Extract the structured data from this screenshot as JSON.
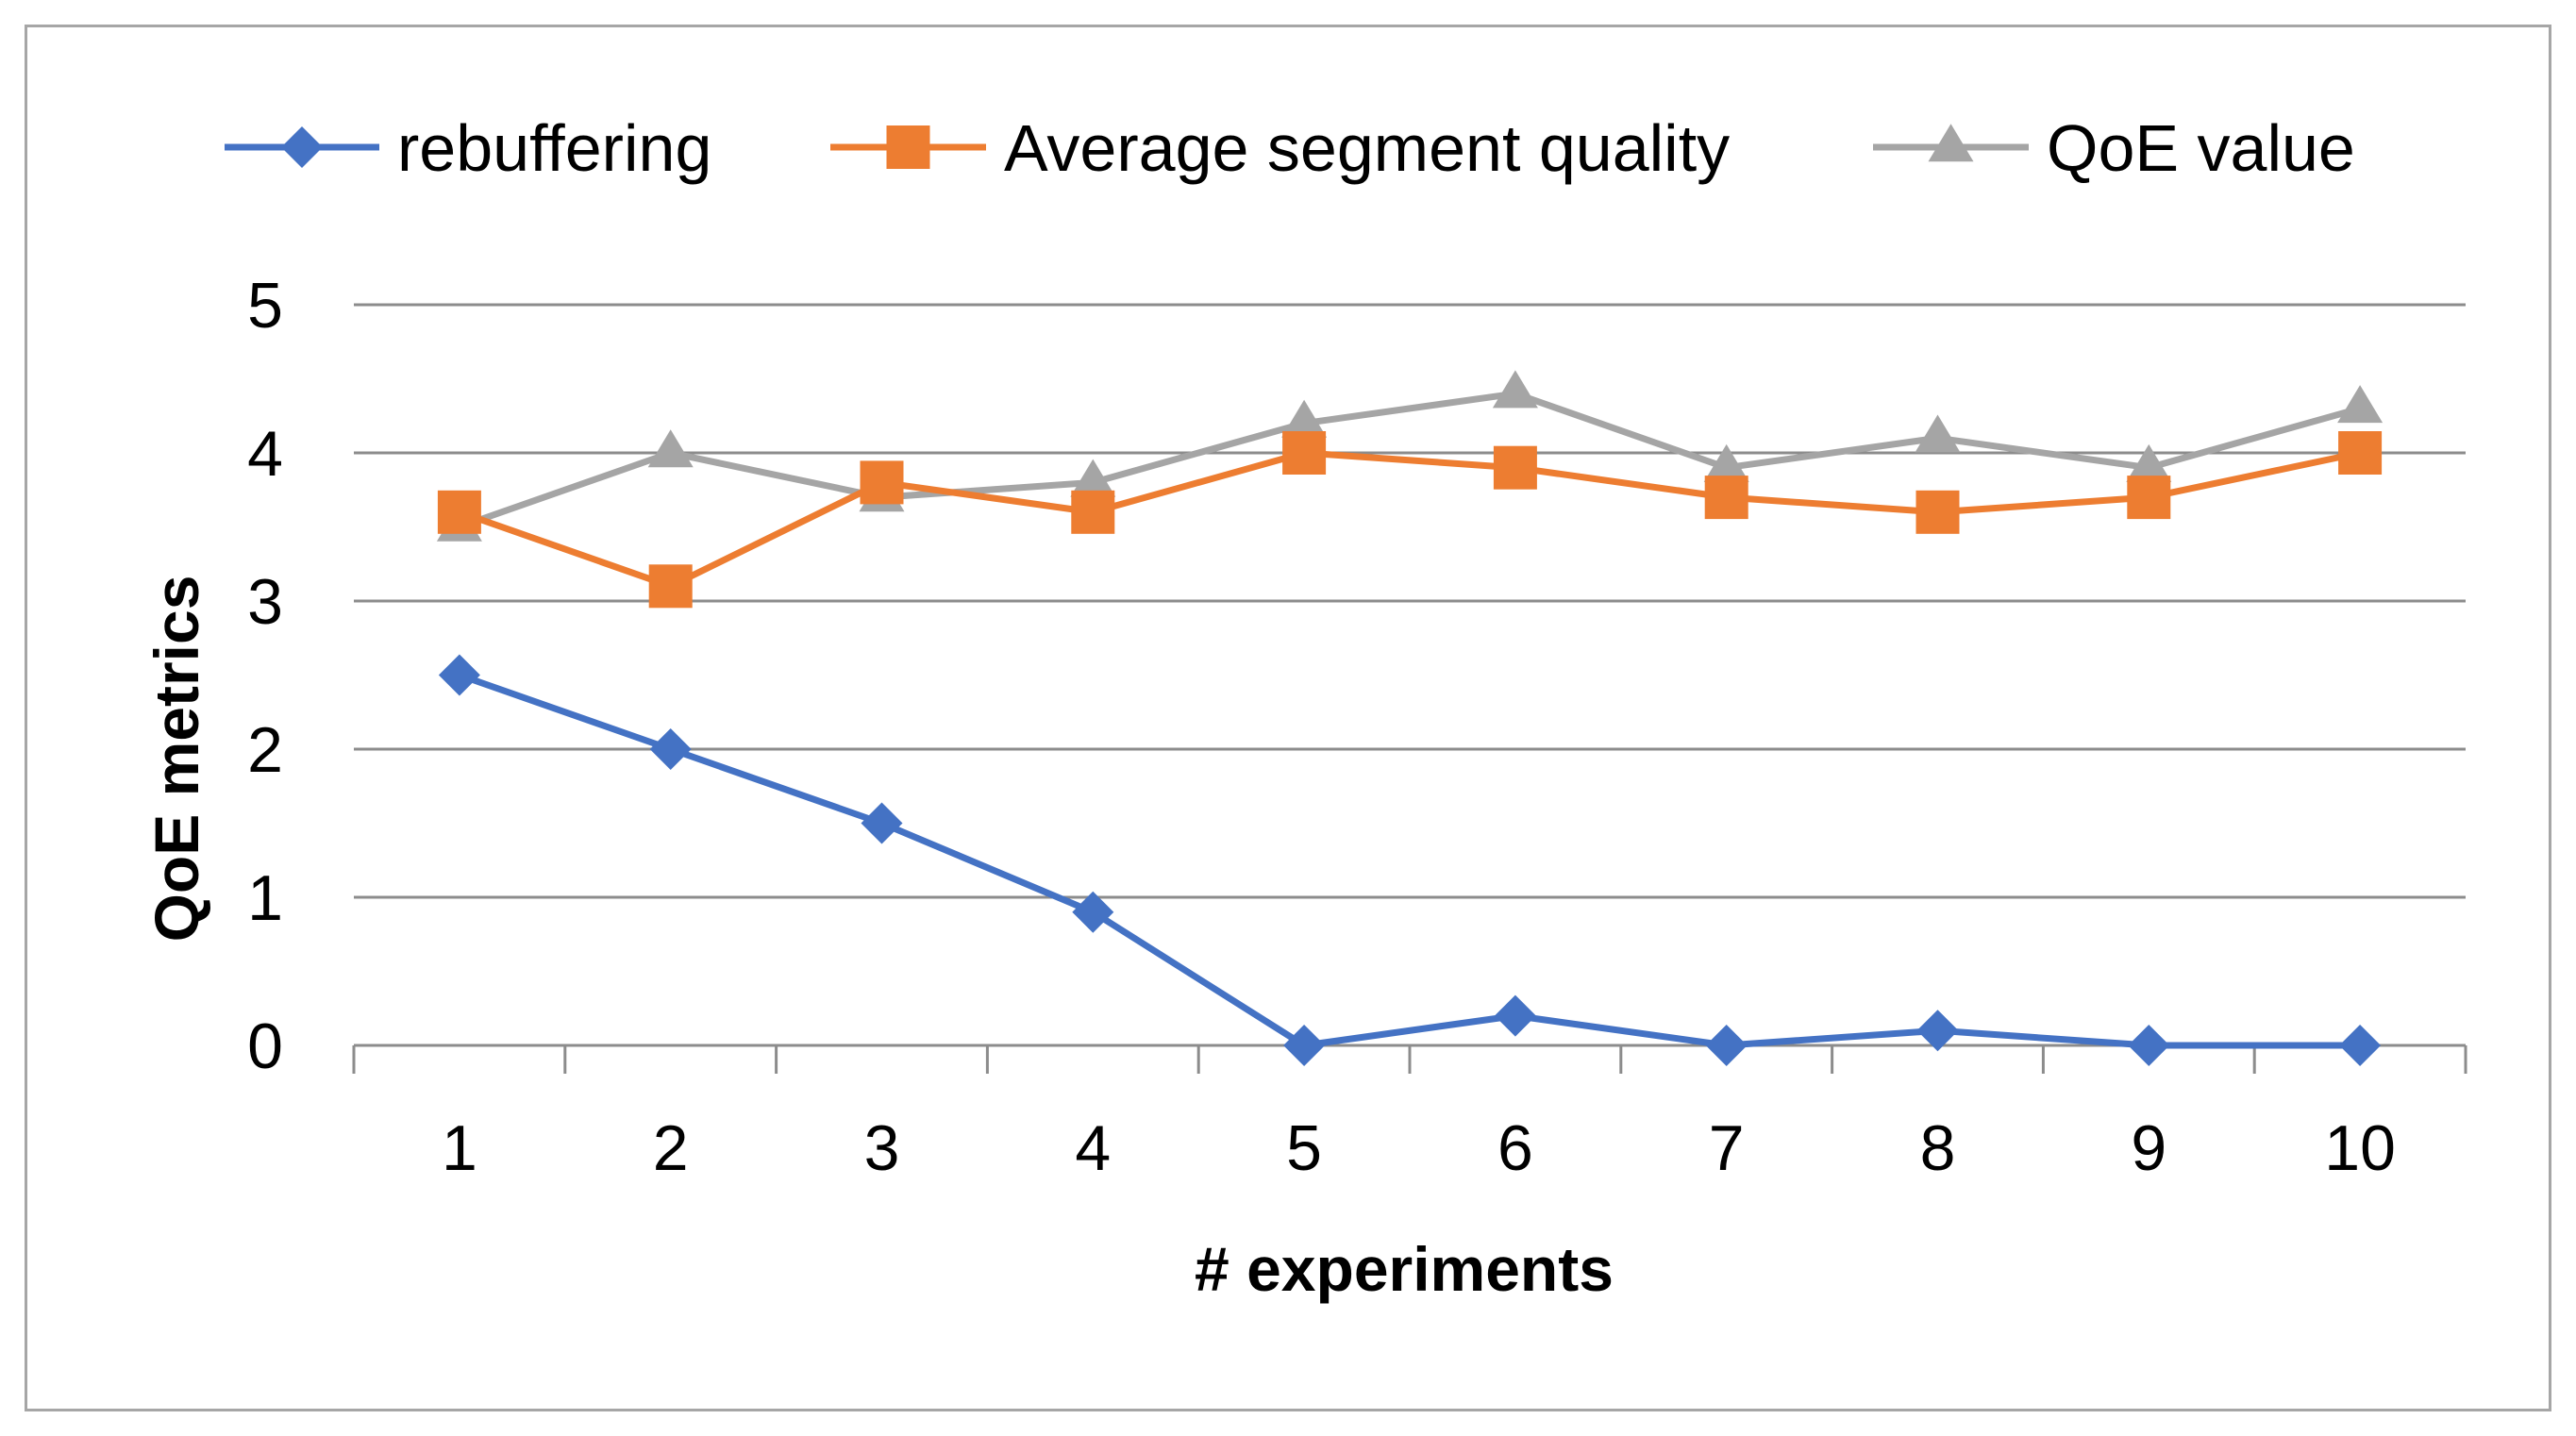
{
  "chart_data": {
    "type": "line",
    "title": "",
    "xlabel": "# experiments",
    "ylabel": "QoE metrics",
    "categories": [
      "1",
      "2",
      "3",
      "4",
      "5",
      "6",
      "7",
      "8",
      "9",
      "10"
    ],
    "ylim": [
      0,
      5
    ],
    "yticks": [
      0,
      1,
      2,
      3,
      4,
      5
    ],
    "grid": true,
    "legend_position": "top",
    "series": [
      {
        "name": "rebuffering",
        "color": "#4472c4",
        "marker": "diamond",
        "values": [
          2.5,
          2.0,
          1.5,
          0.9,
          0.0,
          0.2,
          0.0,
          0.1,
          0.0,
          0.0
        ]
      },
      {
        "name": "Average segment quality",
        "color": "#ed7d31",
        "marker": "square",
        "values": [
          3.6,
          3.1,
          3.8,
          3.6,
          4.0,
          3.9,
          3.7,
          3.6,
          3.7,
          4.0
        ]
      },
      {
        "name": "QoE value",
        "color": "#a5a5a5",
        "marker": "triangle",
        "values": [
          3.5,
          4.0,
          3.7,
          3.8,
          4.2,
          4.4,
          3.9,
          4.1,
          3.9,
          4.3
        ]
      }
    ]
  }
}
